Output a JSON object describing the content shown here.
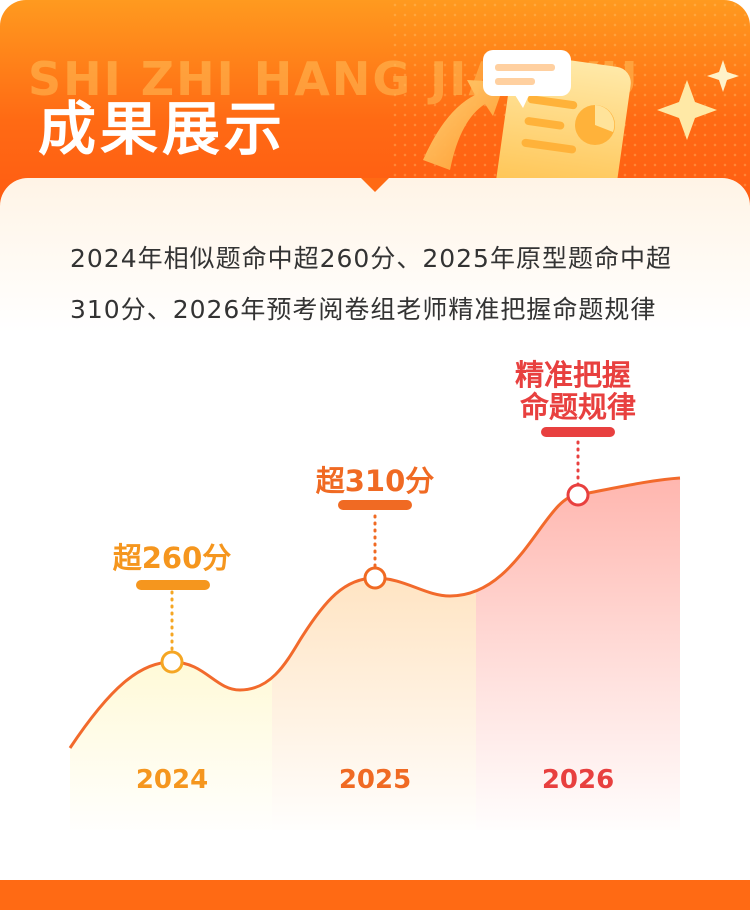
{
  "header": {
    "background_text": "SHI ZHI HANG JIAO YU",
    "title": "成果展示"
  },
  "description": "2024年相似题命中超260分、2025年原型题命中超310分、2026年预考阅卷组老师精准把握命题规律",
  "colors": {
    "header_orange": "#ff6a14",
    "label_2024": "#f5961e",
    "label_2025": "#f06a23",
    "label_2026": "#e8403f"
  },
  "chart_data": {
    "type": "area",
    "categories": [
      "2024",
      "2025",
      "2026"
    ],
    "annotations": [
      {
        "year": "2024",
        "label": "超260分"
      },
      {
        "year": "2025",
        "label": "超310分"
      },
      {
        "year": "2026",
        "label": "精准把握\n命题规律"
      }
    ]
  }
}
